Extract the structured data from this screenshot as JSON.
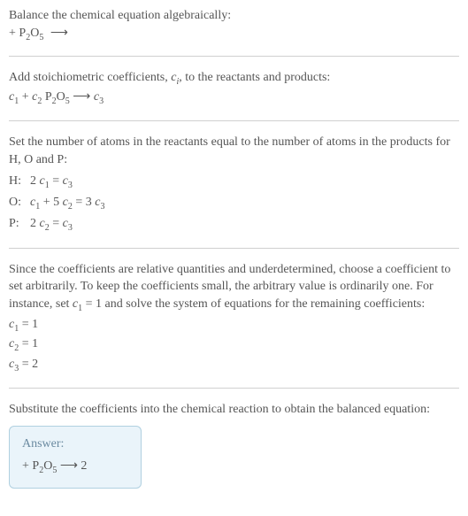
{
  "colors": {
    "text": "#555555",
    "divider": "#d0d0d0",
    "answer_bg": "#eaf4fa",
    "answer_border": "#b0d0e0",
    "answer_label": "#6a8aa0"
  },
  "typography": {
    "body_fontsize_pt": 11,
    "sub_fontsize_pt": 8,
    "font_family": "Georgia, Times New Roman, serif"
  },
  "section1": {
    "title": "Balance the chemical equation algebraically:",
    "eq_pre_blank": " ",
    "eq_plus": "+ P",
    "eq_sub1": "2",
    "eq_o": "O",
    "eq_sub2": "5",
    "eq_arrow": "⟶",
    "eq_post_blank": " "
  },
  "section2": {
    "text_a": "Add stoichiometric coefficients, ",
    "ci": "c",
    "ci_sub": "i",
    "text_b": ", to the reactants and products:",
    "eq_c1": "c",
    "eq_c1sub": "1",
    "eq_blank1": " ",
    "eq_plus": "+ ",
    "eq_c2": "c",
    "eq_c2sub": "2",
    "eq_p2o5_p": " P",
    "eq_p2o5_2": "2",
    "eq_p2o5_o": "O",
    "eq_p2o5_5": "5",
    "eq_arrow": " ⟶ ",
    "eq_c3": "c",
    "eq_c3sub": "3",
    "eq_blank2": " "
  },
  "section3": {
    "title": "Set the number of atoms in the reactants equal to the number of atoms in the products for H, O and P:",
    "rows": [
      {
        "atom": "H:",
        "lhs_html": "2 <span class=\"ital\">c</span><span class=\"sub\">1</span> = <span class=\"ital\">c</span><span class=\"sub\">3</span>"
      },
      {
        "atom": "O:",
        "lhs_html": "<span class=\"ital\">c</span><span class=\"sub\">1</span> + 5 <span class=\"ital\">c</span><span class=\"sub\">2</span> = 3 <span class=\"ital\">c</span><span class=\"sub\">3</span>"
      },
      {
        "atom": "P:",
        "lhs_html": "2 <span class=\"ital\">c</span><span class=\"sub\">2</span> = <span class=\"ital\">c</span><span class=\"sub\">3</span>"
      }
    ]
  },
  "section4": {
    "text_a": "Since the coefficients are relative quantities and underdetermined, choose a coefficient to set arbitrarily. To keep the coefficients small, the arbitrary value is ordinarily one. For instance, set ",
    "c1": "c",
    "c1sub": "1",
    "text_b": " = 1 and solve the system of equations for the remaining coefficients:",
    "coefs": [
      {
        "c": "c",
        "sub": "1",
        "eq": " = 1"
      },
      {
        "c": "c",
        "sub": "2",
        "eq": " = 1"
      },
      {
        "c": "c",
        "sub": "3",
        "eq": " = 2"
      }
    ]
  },
  "section5": {
    "title": "Substitute the coefficients into the chemical reaction to obtain the balanced equation:",
    "answer_label": "Answer:",
    "eq_blank1": " ",
    "eq_plus": "+ P",
    "eq_p2": "2",
    "eq_o": "O",
    "eq_o5": "5",
    "eq_arrow": " ⟶ 2 ",
    "eq_blank2": " "
  }
}
